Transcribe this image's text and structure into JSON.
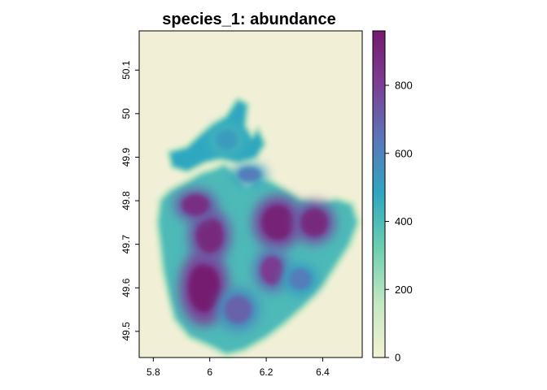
{
  "chart_data": {
    "type": "heatmap",
    "title": "species_1: abundance",
    "xlabel": "",
    "ylabel": "",
    "xlim": [
      5.75,
      6.54
    ],
    "ylim": [
      49.44,
      50.19
    ],
    "x_ticks": [
      5.8,
      6.0,
      6.2,
      6.4
    ],
    "x_tick_labels": [
      "5.8",
      "6",
      "6.2",
      "6.4"
    ],
    "y_ticks": [
      49.5,
      49.6,
      49.7,
      49.8,
      49.9,
      50.0,
      50.1
    ],
    "y_tick_labels": [
      "49.5",
      "49.6",
      "49.7",
      "49.8",
      "49.9",
      "50",
      "50.1"
    ],
    "background_color": "#f1f0d7",
    "colorbar": {
      "min": 0,
      "max": 960,
      "ticks": [
        0,
        200,
        400,
        600,
        800
      ],
      "tick_labels": [
        "0",
        "200",
        "400",
        "600",
        "800"
      ],
      "colors": [
        "#f3f1d5",
        "#c4e8c2",
        "#6dcfb0",
        "#2fa7c0",
        "#5a77b9",
        "#7c3f94",
        "#741b6f"
      ]
    },
    "region_outline": [
      [
        5.83,
        49.8
      ],
      [
        5.86,
        49.82
      ],
      [
        5.92,
        49.84
      ],
      [
        5.97,
        49.86
      ],
      [
        6.02,
        49.87
      ],
      [
        6.05,
        49.88
      ],
      [
        6.09,
        49.86
      ],
      [
        6.13,
        49.83
      ],
      [
        6.17,
        49.85
      ],
      [
        6.22,
        49.84
      ],
      [
        6.27,
        49.82
      ],
      [
        6.32,
        49.8
      ],
      [
        6.38,
        49.79
      ],
      [
        6.45,
        49.8
      ],
      [
        6.5,
        49.79
      ],
      [
        6.52,
        49.75
      ],
      [
        6.49,
        49.7
      ],
      [
        6.45,
        49.66
      ],
      [
        6.4,
        49.61
      ],
      [
        6.33,
        49.56
      ],
      [
        6.26,
        49.52
      ],
      [
        6.2,
        49.49
      ],
      [
        6.12,
        49.46
      ],
      [
        6.06,
        49.45
      ],
      [
        6.0,
        49.47
      ],
      [
        5.93,
        49.49
      ],
      [
        5.88,
        49.53
      ],
      [
        5.86,
        49.58
      ],
      [
        5.84,
        49.64
      ],
      [
        5.83,
        49.7
      ],
      [
        5.82,
        49.75
      ]
    ],
    "north_strip": [
      [
        5.86,
        49.91
      ],
      [
        5.92,
        49.92
      ],
      [
        5.97,
        49.95
      ],
      [
        6.01,
        49.97
      ],
      [
        6.06,
        49.99
      ],
      [
        6.1,
        50.03
      ],
      [
        6.13,
        50.02
      ],
      [
        6.12,
        49.97
      ],
      [
        6.15,
        49.94
      ],
      [
        6.17,
        49.96
      ],
      [
        6.19,
        49.93
      ],
      [
        6.16,
        49.9
      ],
      [
        6.1,
        49.89
      ],
      [
        6.04,
        49.9
      ],
      [
        5.98,
        49.89
      ],
      [
        5.92,
        49.87
      ],
      [
        5.87,
        49.88
      ]
    ],
    "hotspots": [
      {
        "x": 5.98,
        "y": 49.6,
        "sx": 0.07,
        "sy": 0.07,
        "value": 950
      },
      {
        "x": 6.0,
        "y": 49.72,
        "sx": 0.06,
        "sy": 0.05,
        "value": 900
      },
      {
        "x": 5.95,
        "y": 49.79,
        "sx": 0.06,
        "sy": 0.03,
        "value": 880
      },
      {
        "x": 6.24,
        "y": 49.75,
        "sx": 0.07,
        "sy": 0.05,
        "value": 930
      },
      {
        "x": 6.37,
        "y": 49.75,
        "sx": 0.06,
        "sy": 0.04,
        "value": 900
      },
      {
        "x": 6.22,
        "y": 49.64,
        "sx": 0.05,
        "sy": 0.04,
        "value": 820
      },
      {
        "x": 6.32,
        "y": 49.62,
        "sx": 0.05,
        "sy": 0.03,
        "value": 620
      },
      {
        "x": 6.1,
        "y": 49.55,
        "sx": 0.06,
        "sy": 0.04,
        "value": 700
      },
      {
        "x": 6.14,
        "y": 49.86,
        "sx": 0.05,
        "sy": 0.02,
        "value": 620
      },
      {
        "x": 6.06,
        "y": 49.94,
        "sx": 0.05,
        "sy": 0.03,
        "value": 520
      }
    ]
  }
}
